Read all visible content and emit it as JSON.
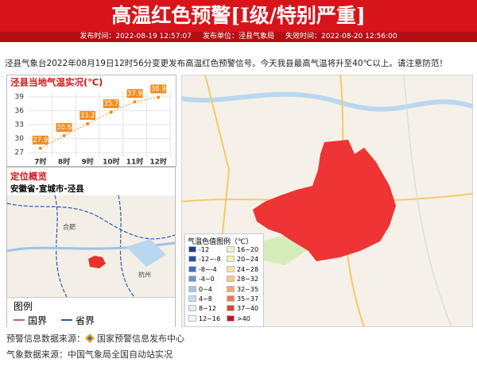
{
  "header": {
    "title": "高温红色预警[I级/特别严重]",
    "publish_time": "发布时间：2022-08-19 12:57:07",
    "publisher": "发布单位：泾县气象局",
    "expire_time": "失效时间：2022-08-20 12:56:00"
  },
  "description": "泾县气象台2022年08月19日12时56分变更发布高温红色预警信号。今天我县最高气温将升至40℃以上。请注意防范！",
  "temperature_chart": {
    "type": "line",
    "title": "泾县当地气温实况(℃)",
    "categories": [
      "7时",
      "8时",
      "9时",
      "10时",
      "11时",
      "12时"
    ],
    "values": [
      27.9,
      30.6,
      33.2,
      35.7,
      37.9,
      38.9
    ],
    "color": "#f08c1e",
    "ylim": [
      26,
      40
    ],
    "yticks": [
      27,
      30,
      33,
      36,
      39
    ],
    "grid": true
  },
  "location": {
    "title": "定位概览",
    "path": "安徽省-宣城市-泾县",
    "map_labels": [
      "合肥",
      "杭州"
    ],
    "legend": {
      "title": "图例",
      "items": [
        {
          "label": "国界",
          "color": "#c86464"
        },
        {
          "label": "省界",
          "color": "#2a5db0"
        }
      ]
    }
  },
  "temperature_legend": {
    "title": "气温色值图例（℃）",
    "items": [
      {
        "label": "-12",
        "color": "#1c3d8f"
      },
      {
        "label": "-12~-8",
        "color": "#2450a6"
      },
      {
        "label": "-8~-4",
        "color": "#3e6fc1"
      },
      {
        "label": "-4~0",
        "color": "#6d95d4"
      },
      {
        "label": "0~4",
        "color": "#a7c3e8"
      },
      {
        "label": "4~8",
        "color": "#c7dbf1"
      },
      {
        "label": "8~12",
        "color": "#e0ecf8"
      },
      {
        "label": "12~16",
        "color": "#f0f7fb"
      },
      {
        "label": "16~20",
        "color": "#e6f4c6"
      },
      {
        "label": "20~24",
        "color": "#f4f2ae"
      },
      {
        "label": "24~28",
        "color": "#fbe39f"
      },
      {
        "label": "28~32",
        "color": "#f9c98a"
      },
      {
        "label": "32~35",
        "color": "#f5a86b"
      },
      {
        "label": "35~37",
        "color": "#ef7b4b"
      },
      {
        "label": "37~40",
        "color": "#e0402a"
      },
      {
        "label": ">40",
        "color": "#c8102e"
      }
    ]
  },
  "footer": {
    "warning_source": "预警信息数据来源：",
    "warning_center": "国家预警信息发布中心",
    "weather_source": "气象数据来源：中国气象局全国自动站实况"
  }
}
